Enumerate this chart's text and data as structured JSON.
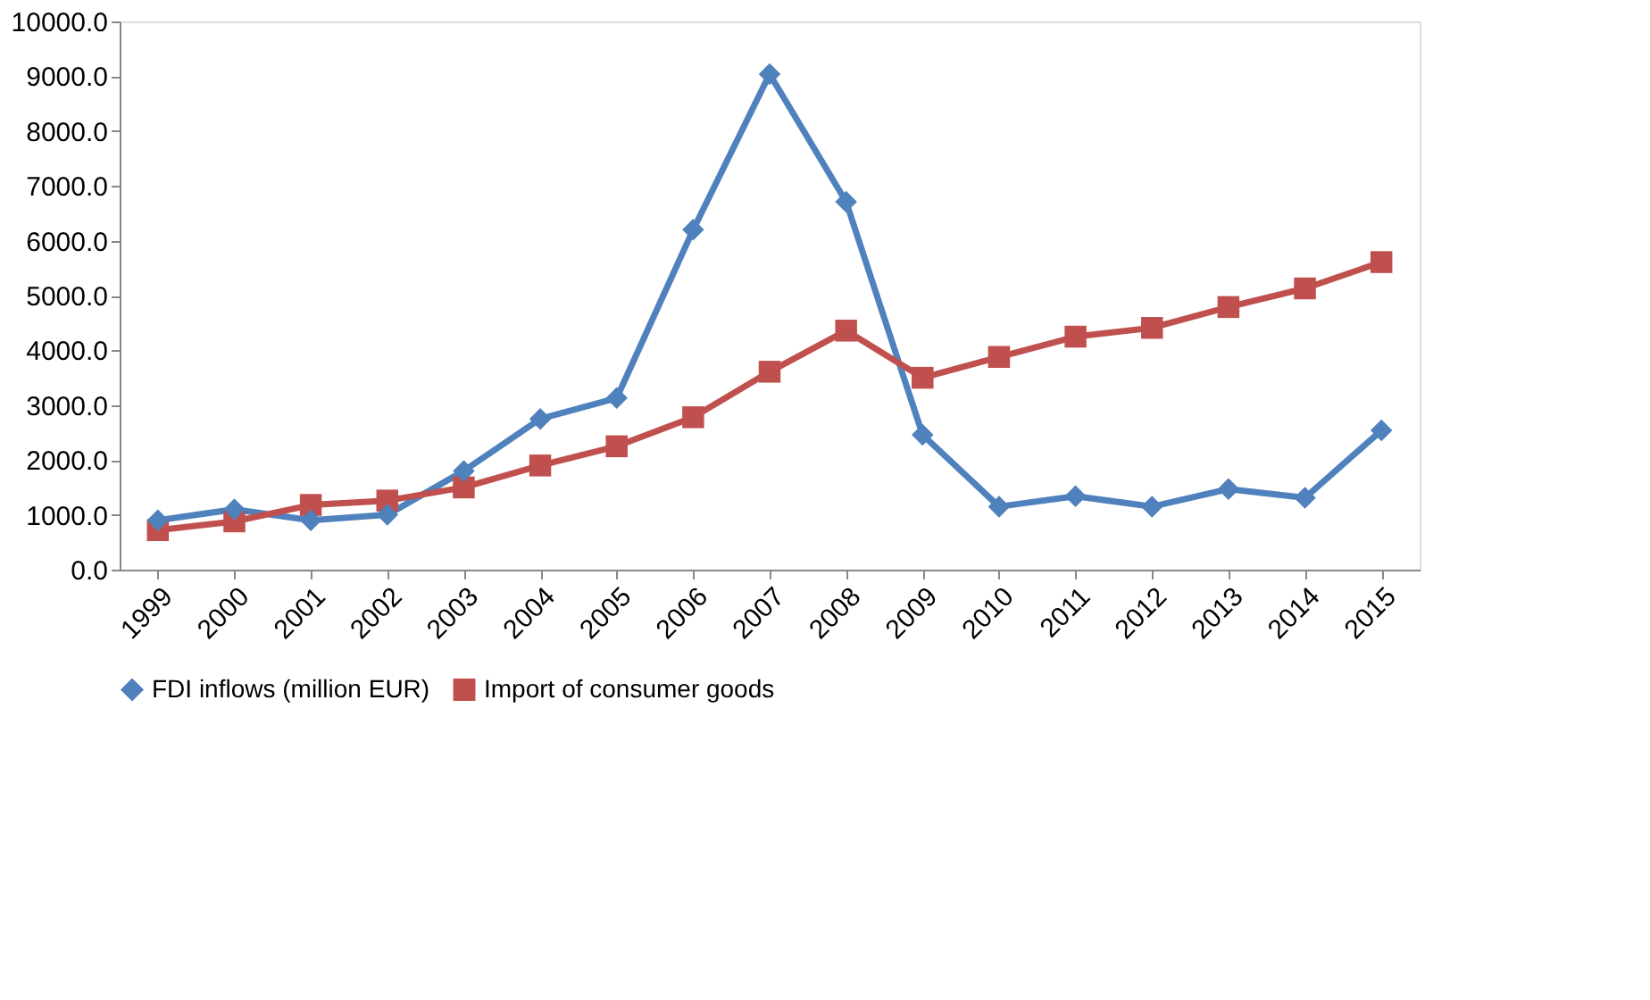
{
  "chart_data": {
    "type": "line",
    "categories": [
      "1999",
      "2000",
      "2001",
      "2002",
      "2003",
      "2004",
      "2005",
      "2006",
      "2007",
      "2008",
      "2009",
      "2010",
      "2011",
      "2012",
      "2013",
      "2014",
      "2015"
    ],
    "series": [
      {
        "name": "FDI inflows (million EUR)",
        "color": "#4f81bd",
        "marker": "diamond",
        "values": [
          900,
          1100,
          900,
          1000,
          1800,
          2750,
          3130,
          6200,
          9040,
          6710,
          2460,
          1150,
          1340,
          1150,
          1470,
          1310,
          2540
        ]
      },
      {
        "name": "Import of consumer goods",
        "color": "#c0504d",
        "marker": "square",
        "values": [
          720,
          880,
          1180,
          1260,
          1500,
          1900,
          2250,
          2780,
          3610,
          4360,
          3500,
          3880,
          4250,
          4410,
          4790,
          5130,
          5610
        ]
      }
    ],
    "ylim": [
      0,
      10000
    ],
    "yticks": [
      {
        "value": 0,
        "label": "0.0"
      },
      {
        "value": 1000,
        "label": "1000.0"
      },
      {
        "value": 2000,
        "label": "2000.0"
      },
      {
        "value": 3000,
        "label": "3000.0"
      },
      {
        "value": 4000,
        "label": "4000.0"
      },
      {
        "value": 5000,
        "label": "5000.0"
      },
      {
        "value": 6000,
        "label": "6000.0"
      },
      {
        "value": 7000,
        "label": "7000.0"
      },
      {
        "value": 8000,
        "label": "8000.0"
      },
      {
        "value": 9000,
        "label": "9000.0"
      },
      {
        "value": 10000,
        "label": "10000.0"
      }
    ],
    "grid": false,
    "legend": "bottom",
    "line_style": "solid"
  }
}
